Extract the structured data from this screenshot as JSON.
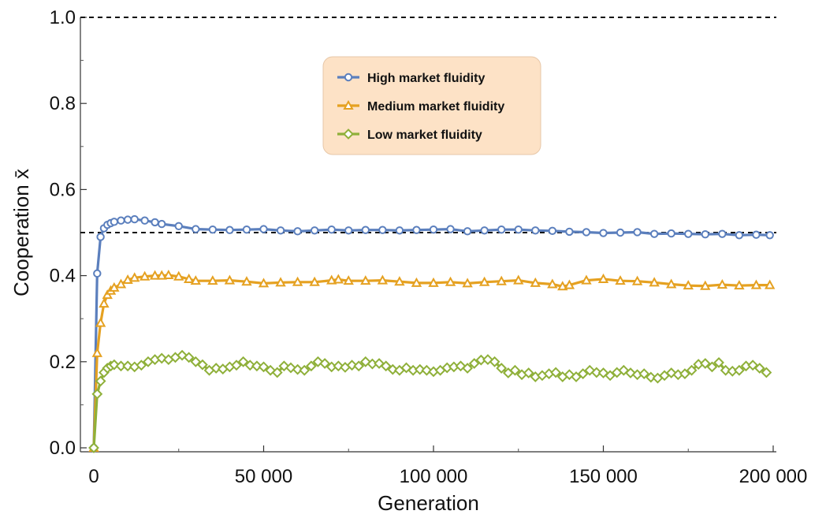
{
  "chart_data": {
    "type": "line",
    "title": "",
    "xlabel": "Generation",
    "ylabel": "Cooperation x̄",
    "xlim": [
      0,
      200000
    ],
    "ylim": [
      0.0,
      1.0
    ],
    "x_ticks": [
      0,
      50000,
      100000,
      150000,
      200000
    ],
    "x_tick_labels": [
      "0",
      "50 000",
      "100 000",
      "150 000",
      "200 000"
    ],
    "y_ticks": [
      0.0,
      0.2,
      0.4,
      0.6,
      0.8,
      1.0
    ],
    "y_tick_labels": [
      "0.0",
      "0.2",
      "0.4",
      "0.6",
      "0.8",
      "1.0"
    ],
    "reference_lines": [
      0.5,
      1.0
    ],
    "legend_position": "top-center",
    "series": [
      {
        "name": "High market fluidity",
        "color": "#5b7fbd",
        "marker": "circle",
        "x": [
          0,
          1000,
          2000,
          3000,
          4000,
          5000,
          6000,
          8000,
          10000,
          12000,
          15000,
          18000,
          20000,
          25000,
          30000,
          35000,
          40000,
          45000,
          50000,
          55000,
          60000,
          65000,
          70000,
          75000,
          80000,
          85000,
          90000,
          95000,
          100000,
          105000,
          110000,
          115000,
          120000,
          125000,
          130000,
          135000,
          140000,
          145000,
          150000,
          155000,
          160000,
          165000,
          170000,
          175000,
          180000,
          185000,
          190000,
          195000,
          199000
        ],
        "y": [
          0.0,
          0.405,
          0.49,
          0.51,
          0.518,
          0.522,
          0.525,
          0.528,
          0.53,
          0.531,
          0.528,
          0.524,
          0.52,
          0.515,
          0.508,
          0.507,
          0.506,
          0.507,
          0.508,
          0.505,
          0.503,
          0.505,
          0.507,
          0.505,
          0.506,
          0.506,
          0.505,
          0.506,
          0.507,
          0.508,
          0.503,
          0.505,
          0.507,
          0.507,
          0.505,
          0.504,
          0.502,
          0.501,
          0.499,
          0.5,
          0.501,
          0.497,
          0.498,
          0.497,
          0.496,
          0.497,
          0.494,
          0.495,
          0.494
        ]
      },
      {
        "name": "Medium market fluidity",
        "color": "#e5a121",
        "marker": "triangle",
        "x": [
          0,
          1000,
          2000,
          3000,
          4000,
          5000,
          6000,
          8000,
          10000,
          12000,
          15000,
          18000,
          20000,
          22000,
          25000,
          28000,
          30000,
          35000,
          40000,
          45000,
          50000,
          55000,
          60000,
          65000,
          70000,
          72000,
          75000,
          80000,
          85000,
          90000,
          95000,
          100000,
          105000,
          110000,
          115000,
          120000,
          125000,
          130000,
          135000,
          138000,
          140000,
          145000,
          150000,
          155000,
          160000,
          165000,
          170000,
          175000,
          180000,
          185000,
          190000,
          195000,
          199000
        ],
        "y": [
          0.0,
          0.22,
          0.29,
          0.335,
          0.355,
          0.365,
          0.372,
          0.38,
          0.39,
          0.395,
          0.398,
          0.4,
          0.4,
          0.401,
          0.398,
          0.392,
          0.388,
          0.388,
          0.389,
          0.386,
          0.382,
          0.384,
          0.385,
          0.385,
          0.389,
          0.391,
          0.388,
          0.388,
          0.389,
          0.386,
          0.383,
          0.383,
          0.385,
          0.382,
          0.385,
          0.387,
          0.389,
          0.383,
          0.38,
          0.375,
          0.378,
          0.389,
          0.392,
          0.388,
          0.387,
          0.384,
          0.38,
          0.377,
          0.376,
          0.379,
          0.377,
          0.378,
          0.378
        ]
      },
      {
        "name": "Low market fluidity",
        "color": "#8fb03a",
        "marker": "diamond",
        "x": [
          0,
          1000,
          2000,
          3000,
          4000,
          5000,
          6000,
          8000,
          10000,
          12000,
          14000,
          16000,
          18000,
          20000,
          22000,
          24000,
          26000,
          28000,
          30000,
          32000,
          34000,
          36000,
          38000,
          40000,
          42000,
          44000,
          46000,
          48000,
          50000,
          52000,
          54000,
          56000,
          58000,
          60000,
          62000,
          64000,
          66000,
          68000,
          70000,
          72000,
          74000,
          76000,
          78000,
          80000,
          82000,
          84000,
          86000,
          88000,
          90000,
          92000,
          94000,
          96000,
          98000,
          100000,
          102000,
          104000,
          106000,
          108000,
          110000,
          112000,
          114000,
          116000,
          118000,
          120000,
          122000,
          124000,
          126000,
          128000,
          130000,
          132000,
          134000,
          136000,
          138000,
          140000,
          142000,
          144000,
          146000,
          148000,
          150000,
          152000,
          154000,
          156000,
          158000,
          160000,
          162000,
          164000,
          166000,
          168000,
          170000,
          172000,
          174000,
          176000,
          178000,
          180000,
          182000,
          184000,
          186000,
          188000,
          190000,
          192000,
          194000,
          196000,
          198000
        ],
        "y": [
          0.0,
          0.125,
          0.155,
          0.175,
          0.185,
          0.19,
          0.193,
          0.19,
          0.19,
          0.188,
          0.192,
          0.2,
          0.205,
          0.208,
          0.205,
          0.21,
          0.215,
          0.21,
          0.2,
          0.193,
          0.18,
          0.185,
          0.183,
          0.188,
          0.192,
          0.2,
          0.192,
          0.19,
          0.188,
          0.18,
          0.175,
          0.19,
          0.186,
          0.182,
          0.18,
          0.19,
          0.2,
          0.196,
          0.188,
          0.19,
          0.187,
          0.192,
          0.19,
          0.2,
          0.195,
          0.196,
          0.19,
          0.182,
          0.18,
          0.186,
          0.18,
          0.182,
          0.18,
          0.177,
          0.18,
          0.186,
          0.188,
          0.19,
          0.185,
          0.196,
          0.204,
          0.205,
          0.2,
          0.185,
          0.174,
          0.18,
          0.17,
          0.174,
          0.165,
          0.168,
          0.172,
          0.175,
          0.165,
          0.17,
          0.165,
          0.172,
          0.18,
          0.175,
          0.174,
          0.168,
          0.175,
          0.18,
          0.174,
          0.17,
          0.172,
          0.164,
          0.162,
          0.168,
          0.174,
          0.17,
          0.172,
          0.18,
          0.194,
          0.196,
          0.188,
          0.198,
          0.18,
          0.178,
          0.18,
          0.19,
          0.192,
          0.185,
          0.175
        ]
      }
    ]
  }
}
